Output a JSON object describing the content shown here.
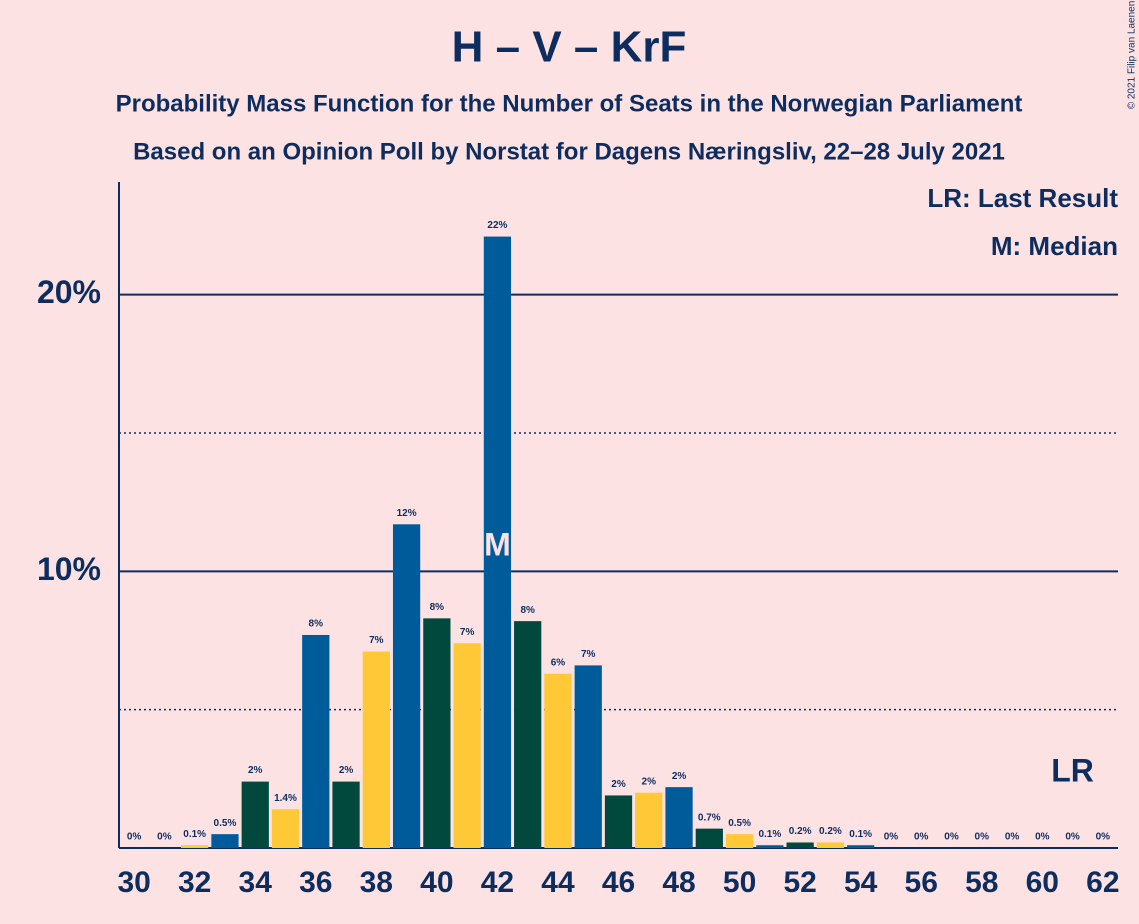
{
  "chart_data": {
    "type": "bar",
    "title": "H – V – KrF",
    "subtitle": "Probability Mass Function for the Number of Seats in the Norwegian Parliament",
    "subtitle2": "Based on an Opinion Poll by Norstat for Dagens Næringsliv, 22–28 July 2021",
    "copyright": "© 2021 Filip van Laenen",
    "legend": [
      "LR: Last Result",
      "M: Median"
    ],
    "median": 42,
    "median_label": "M",
    "last_result": 61,
    "last_result_label": "LR",
    "categories": [
      30,
      null,
      32,
      null,
      34,
      null,
      36,
      null,
      38,
      null,
      40,
      null,
      42,
      null,
      44,
      null,
      46,
      null,
      48,
      null,
      50,
      null,
      52,
      null,
      54,
      null,
      56,
      null,
      58,
      null,
      60,
      null,
      62
    ],
    "values": [
      0,
      0,
      0.1,
      0.5,
      2.4,
      1.4,
      7.7,
      2.4,
      7.1,
      11.7,
      8.3,
      7.4,
      22.1,
      8.2,
      6.3,
      6.6,
      1.9,
      2.0,
      2.2,
      0.7,
      0.5,
      0.1,
      0.2,
      0.2,
      0.1,
      0,
      0,
      0,
      0,
      0,
      0,
      0,
      0
    ],
    "value_labels": [
      "0%",
      "0%",
      "0.1%",
      "0.5%",
      "2%",
      "1.4%",
      "8%",
      "2%",
      "7%",
      "12%",
      "8%",
      "7%",
      "22%",
      "8%",
      "6%",
      "7%",
      "2%",
      "2%",
      "2%",
      "0.7%",
      "0.5%",
      "0.1%",
      "0.2%",
      "0.2%",
      "0.1%",
      "0%",
      "0%",
      "0%",
      "0%",
      "0%",
      "0%",
      "0%",
      "0%"
    ],
    "palette": [
      "#005b9a",
      "#00493c",
      "#ffc837"
    ],
    "ylim": [
      0,
      24
    ],
    "yticks": [
      {
        "value": 10,
        "label": "10%"
      },
      {
        "value": 20,
        "label": "20%"
      }
    ],
    "minor_yticks": [
      5,
      15
    ],
    "grid": true
  }
}
